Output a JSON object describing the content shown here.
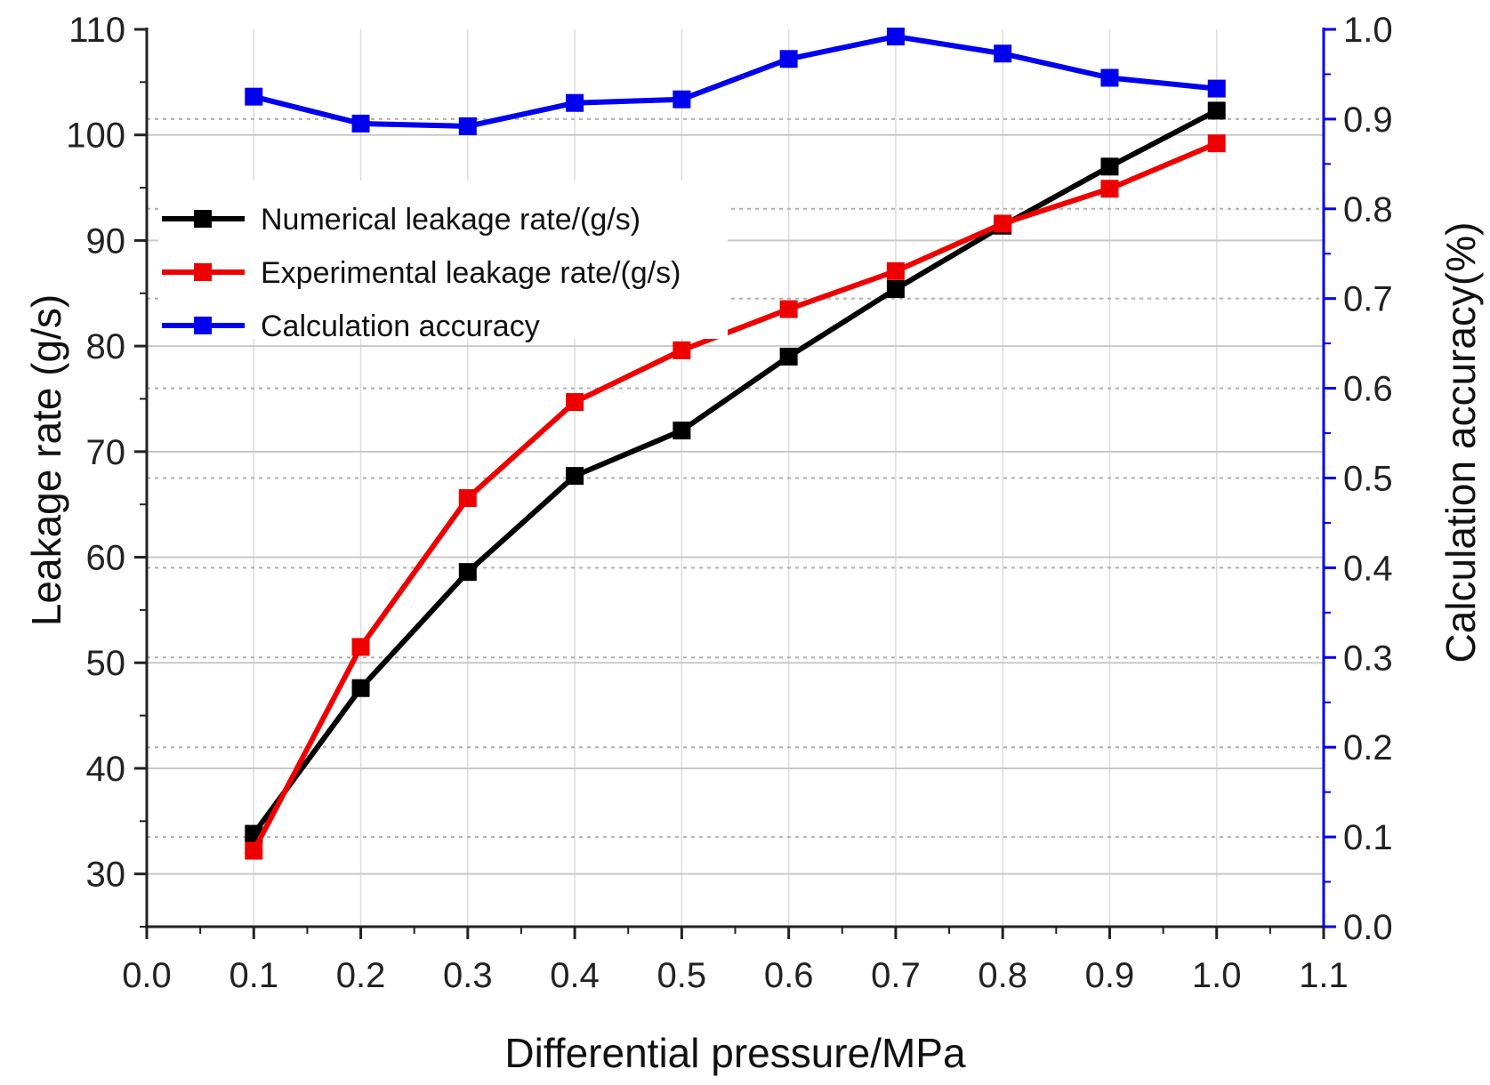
{
  "chart_data": {
    "type": "line",
    "xlabel": "Differential pressure/MPa",
    "ylabel": "Leakage rate (g/s)",
    "y2label": "Calculation accuracy(%)",
    "xlim": [
      0.0,
      1.1
    ],
    "ylim": [
      25,
      110
    ],
    "y2lim": [
      0.0,
      1.0
    ],
    "xticks": [
      "0.0",
      "0.1",
      "0.2",
      "0.3",
      "0.4",
      "0.5",
      "0.6",
      "0.7",
      "0.8",
      "0.9",
      "1.0",
      "1.1"
    ],
    "yticks": [
      "30",
      "40",
      "50",
      "60",
      "70",
      "80",
      "90",
      "100",
      "110"
    ],
    "y2ticks": [
      "0.0",
      "0.1",
      "0.2",
      "0.3",
      "0.4",
      "0.5",
      "0.6",
      "0.7",
      "0.8",
      "0.9",
      "1.0"
    ],
    "grid": true,
    "legend_position": "top-left",
    "x": [
      0.1,
      0.2,
      0.3,
      0.4,
      0.5,
      0.6,
      0.7,
      0.8,
      0.9,
      1.0
    ],
    "series": [
      {
        "name": "Numerical leakage rate/(g/s)",
        "axis": "left",
        "color": "#000000",
        "values": [
          33.8,
          47.6,
          58.6,
          67.7,
          72.0,
          79.0,
          85.4,
          91.4,
          97.0,
          102.3
        ]
      },
      {
        "name": "Experimental leakage rate/(g/s)",
        "axis": "left",
        "color": "#ee0000",
        "values": [
          32.2,
          51.5,
          65.6,
          74.7,
          79.6,
          83.5,
          87.1,
          91.6,
          94.9,
          99.2
        ]
      },
      {
        "name": "Calculation accuracy",
        "axis": "right",
        "color": "#0000ee",
        "values": [
          0.925,
          0.895,
          0.892,
          0.918,
          0.922,
          0.967,
          0.992,
          0.973,
          0.946,
          0.934
        ]
      }
    ]
  }
}
